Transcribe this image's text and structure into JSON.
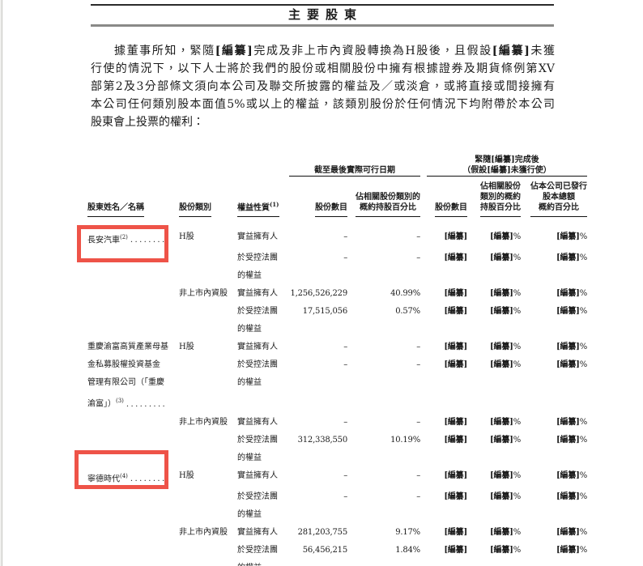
{
  "page": {
    "title": "主要股東",
    "intro_lines": [
      "據董事所知，緊隨[編纂]完成及非上市內資股轉換為H股後，且假設[編纂]未獲",
      "行使的情況下，以下人士將於我們的股份或相關股份中擁有根據證券及期貨條例第XV",
      "部第2及3分部條文須向本公司及聯交所披露的權益及／或淡倉，或將直接或間接擁有",
      "本公司任何類別股本面值5%或以上的權益，該類別股份於任何情況下均附帶於本公司",
      "股東會上投票的權利："
    ]
  },
  "colors": {
    "highlight": "#ee5348"
  },
  "table": {
    "leader_dots": ".........",
    "group_headers": {
      "current": "截至最後實際可行日期",
      "post": "緊隨[編纂]完成後\n（假設[編纂]未獲行使）"
    },
    "columns": {
      "name": "股東姓名／名稱",
      "share_class": "股份類別",
      "nature": "權益性質",
      "nature_sup": "(1)",
      "num_current": "股份數目",
      "pct_current": "佔相關股份類別的\n概約持股百分比",
      "num_post": "股份數目",
      "pct_post_class": "佔相關股份\n類別的概約\n持股百分比",
      "pct_post_total": "佔本公司已發行\n股本總額\n概約百分比"
    },
    "rows": [
      {
        "name": "長安汽車",
        "sup": "(2)",
        "dots": true,
        "cls": "H股",
        "nature": "實益擁有人",
        "vals": [
          "–",
          "–",
          "[編纂]",
          "[編纂]%",
          "[編纂]%"
        ]
      },
      {
        "nature": "於受控法團",
        "vals": [
          "–",
          "–",
          "[編纂]",
          "[編纂]%",
          "[編纂]%"
        ]
      },
      {
        "nature": "的權益",
        "nind": true
      },
      {
        "cls": "非上市內資股",
        "nature": "實益擁有人",
        "vals": [
          "1,256,526,229",
          "40.99%",
          "[編纂]",
          "[編纂]%",
          "[編纂]%"
        ]
      },
      {
        "nature": "於受控法團",
        "vals": [
          "17,515,056",
          "0.57%",
          "[編纂]",
          "[編纂]%",
          "[編纂]%"
        ]
      },
      {
        "nature": "的權益",
        "nind": true
      },
      {
        "name": "重慶渝富高質產業母基",
        "cls": "H股",
        "nature": "實益擁有人",
        "vals": [
          "–",
          "–",
          "[編纂]",
          "[編纂]%",
          "[編纂]%"
        ]
      },
      {
        "name": "金私募股權投資基金",
        "ind": true,
        "nature": "於受控法團",
        "vals": [
          "–",
          "–",
          "[編纂]",
          "[編纂]%",
          "[編纂]%"
        ]
      },
      {
        "name": "管理有限公司（「重慶",
        "ind": true,
        "nature": "的權益",
        "nind": true
      },
      {
        "name": "渝富」）",
        "sup": "(3)",
        "dots": true,
        "ind": true
      },
      {
        "cls": "非上市內資股",
        "nature": "實益擁有人",
        "vals": [
          "–",
          "–",
          "[編纂]",
          "[編纂]%",
          "[編纂]%"
        ]
      },
      {
        "nature": "於受控法團",
        "vals": [
          "312,338,550",
          "10.19%",
          "[編纂]",
          "[編纂]%",
          "[編纂]%"
        ]
      },
      {
        "nature": "的權益",
        "nind": true
      },
      {
        "name": "寧德時代",
        "sup": "(4)",
        "dots": true,
        "cls": "H股",
        "nature": "實益擁有人",
        "vals": [
          "–",
          "–",
          "[編纂]",
          "[編纂]%",
          "[編纂]%"
        ]
      },
      {
        "nature": "於受控法團",
        "vals": [
          "–",
          "–",
          "[編纂]",
          "[編纂]%",
          "[編纂]%"
        ]
      },
      {
        "nature": "的權益",
        "nind": true
      },
      {
        "cls": "非上市內資股",
        "nature": "實益擁有人",
        "vals": [
          "281,203,755",
          "9.17%",
          "[編纂]",
          "[編纂]%",
          "[編纂]%"
        ]
      },
      {
        "nature": "於受控法團",
        "vals": [
          "56,456,215",
          "1.84%",
          "[編纂]",
          "[編纂]%",
          "[編纂]%"
        ]
      },
      {
        "nature": "的權益",
        "nind": true
      }
    ]
  }
}
